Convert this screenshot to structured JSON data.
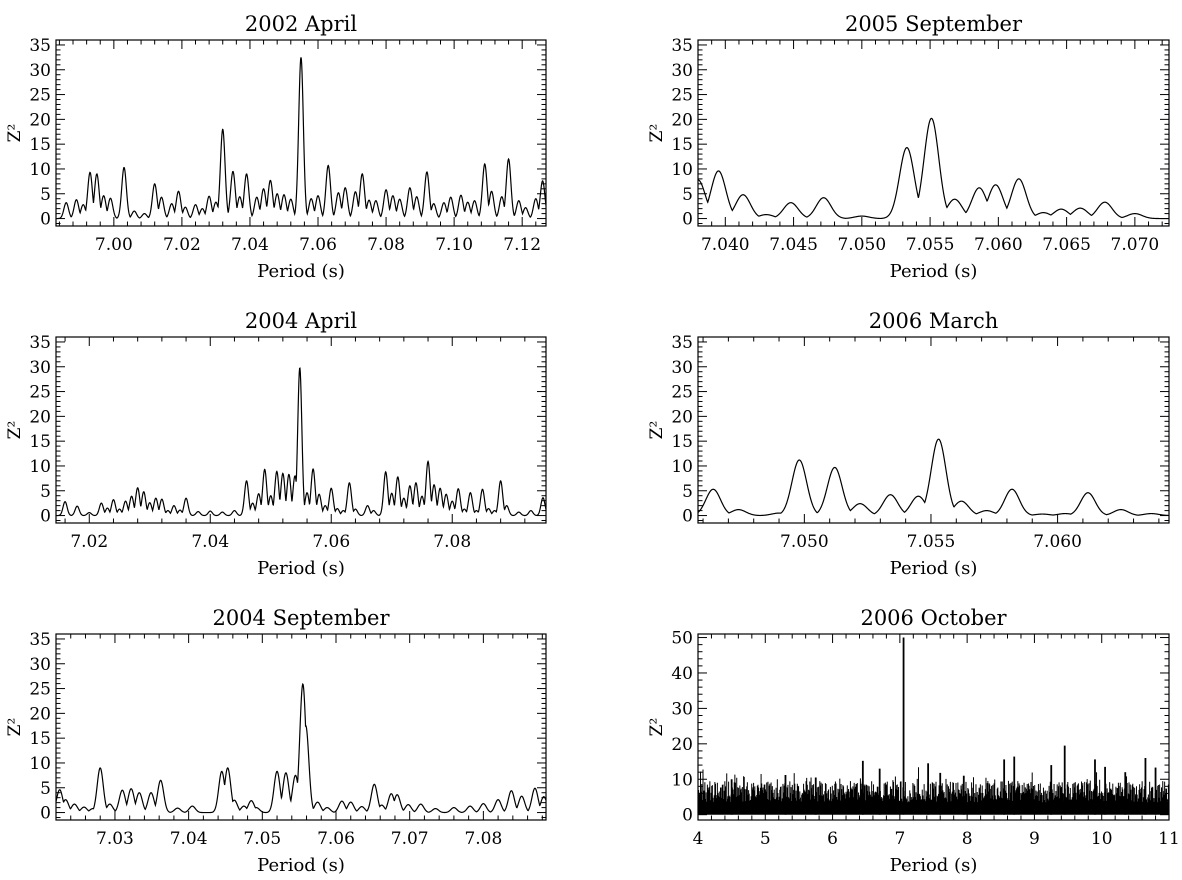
{
  "chart_data": [
    {
      "type": "line",
      "title": "2002 April",
      "xlabel": "Period (s)",
      "ylabel": "Z²",
      "xlim": [
        6.983,
        7.127
      ],
      "ylim": [
        -1.5,
        36
      ],
      "xticks": [
        "7.00",
        "7.02",
        "7.04",
        "7.06",
        "7.08",
        "7.10",
        "7.12"
      ],
      "yticks": [
        "0",
        "5",
        "10",
        "15",
        "20",
        "25",
        "30",
        "35"
      ],
      "peaks": [
        [
          6.986,
          3.2
        ],
        [
          6.989,
          3.8
        ],
        [
          6.991,
          2.8
        ],
        [
          6.993,
          9.3
        ],
        [
          6.995,
          9.0
        ],
        [
          6.997,
          4.6
        ],
        [
          6.999,
          4.1
        ],
        [
          7.003,
          10.3
        ],
        [
          7.006,
          1.5
        ],
        [
          7.009,
          1.0
        ],
        [
          7.012,
          7.0
        ],
        [
          7.014,
          4.3
        ],
        [
          7.017,
          3.0
        ],
        [
          7.019,
          5.5
        ],
        [
          7.021,
          2.3
        ],
        [
          7.024,
          2.8
        ],
        [
          7.026,
          2.0
        ],
        [
          7.028,
          4.5
        ],
        [
          7.03,
          3.3
        ],
        [
          7.032,
          18.0
        ],
        [
          7.035,
          9.5
        ],
        [
          7.037,
          4.4
        ],
        [
          7.039,
          9.0
        ],
        [
          7.042,
          4.3
        ],
        [
          7.044,
          6.0
        ],
        [
          7.046,
          7.7
        ],
        [
          7.048,
          5.0
        ],
        [
          7.05,
          4.8
        ],
        [
          7.052,
          3.9
        ],
        [
          7.055,
          32.5
        ],
        [
          7.058,
          4.0
        ],
        [
          7.06,
          4.6
        ],
        [
          7.063,
          10.7
        ],
        [
          7.066,
          5.2
        ],
        [
          7.068,
          6.2
        ],
        [
          7.071,
          5.4
        ],
        [
          7.073,
          9.0
        ],
        [
          7.075,
          3.7
        ],
        [
          7.077,
          3.6
        ],
        [
          7.08,
          5.8
        ],
        [
          7.082,
          4.6
        ],
        [
          7.084,
          3.9
        ],
        [
          7.087,
          6.2
        ],
        [
          7.089,
          4.4
        ],
        [
          7.092,
          9.4
        ],
        [
          7.094,
          3.0
        ],
        [
          7.097,
          3.2
        ],
        [
          7.099,
          4.3
        ],
        [
          7.102,
          4.7
        ],
        [
          7.104,
          3.3
        ],
        [
          7.106,
          3.6
        ],
        [
          7.109,
          11.0
        ],
        [
          7.111,
          5.5
        ],
        [
          7.114,
          4.4
        ],
        [
          7.116,
          12.0
        ],
        [
          7.119,
          3.6
        ],
        [
          7.121,
          2.2
        ],
        [
          7.124,
          4.0
        ],
        [
          7.126,
          7.6
        ]
      ]
    },
    {
      "type": "line",
      "title": "2005 September",
      "xlabel": "Period (s)",
      "ylabel": "Z²",
      "xlim": [
        7.038,
        7.0725
      ],
      "ylim": [
        -1.5,
        36
      ],
      "xticks": [
        "7.040",
        "7.045",
        "7.050",
        "7.055",
        "7.060",
        "7.065",
        "7.070"
      ],
      "yticks": [
        "0",
        "5",
        "10",
        "15",
        "20",
        "25",
        "30",
        "35"
      ],
      "peaks": [
        [
          7.038,
          7.8
        ],
        [
          7.0395,
          9.6
        ],
        [
          7.0413,
          4.8
        ],
        [
          7.043,
          0.8
        ],
        [
          7.0448,
          3.2
        ],
        [
          7.0472,
          4.2
        ],
        [
          7.05,
          0.5
        ],
        [
          7.0533,
          14.3
        ],
        [
          7.0551,
          20.2
        ],
        [
          7.0568,
          3.9
        ],
        [
          7.0586,
          6.2
        ],
        [
          7.0598,
          6.8
        ],
        [
          7.0615,
          8.0
        ],
        [
          7.0633,
          1.2
        ],
        [
          7.0646,
          1.9
        ],
        [
          7.066,
          2.1
        ],
        [
          7.0678,
          3.3
        ],
        [
          7.07,
          1.0
        ]
      ]
    },
    {
      "type": "line",
      "title": "2004 April",
      "xlabel": "Period (s)",
      "ylabel": "Z²",
      "xlim": [
        7.0145,
        7.0955
      ],
      "ylim": [
        -1.5,
        36
      ],
      "xticks": [
        "7.02",
        "7.04",
        "7.06",
        "7.08"
      ],
      "yticks": [
        "0",
        "5",
        "10",
        "15",
        "20",
        "25",
        "30",
        "35"
      ],
      "peaks": [
        [
          7.016,
          2.8
        ],
        [
          7.018,
          1.9
        ],
        [
          7.02,
          0.6
        ],
        [
          7.022,
          2.5
        ],
        [
          7.023,
          1.5
        ],
        [
          7.024,
          3.2
        ],
        [
          7.025,
          1.3
        ],
        [
          7.026,
          2.9
        ],
        [
          7.027,
          3.9
        ],
        [
          7.028,
          5.6
        ],
        [
          7.029,
          4.8
        ],
        [
          7.03,
          2.6
        ],
        [
          7.031,
          3.5
        ],
        [
          7.032,
          3.3
        ],
        [
          7.033,
          1.0
        ],
        [
          7.034,
          2.0
        ],
        [
          7.035,
          1.1
        ],
        [
          7.036,
          3.5
        ],
        [
          7.038,
          0.8
        ],
        [
          7.04,
          0.9
        ],
        [
          7.042,
          0.7
        ],
        [
          7.044,
          1.0
        ],
        [
          7.046,
          7.0
        ],
        [
          7.047,
          2.5
        ],
        [
          7.048,
          4.4
        ],
        [
          7.049,
          9.3
        ],
        [
          7.05,
          4.0
        ],
        [
          7.051,
          8.9
        ],
        [
          7.052,
          8.5
        ],
        [
          7.053,
          8.3
        ],
        [
          7.054,
          8.0
        ],
        [
          7.0548,
          29.8
        ],
        [
          7.056,
          4.6
        ],
        [
          7.057,
          9.4
        ],
        [
          7.058,
          4.3
        ],
        [
          7.059,
          2.0
        ],
        [
          7.06,
          5.5
        ],
        [
          7.061,
          1.4
        ],
        [
          7.062,
          1.0
        ],
        [
          7.063,
          6.6
        ],
        [
          7.064,
          1.3
        ],
        [
          7.066,
          2.0
        ],
        [
          7.067,
          1.0
        ],
        [
          7.069,
          8.8
        ],
        [
          7.07,
          4.5
        ],
        [
          7.071,
          7.8
        ],
        [
          7.072,
          3.5
        ],
        [
          7.073,
          6.0
        ],
        [
          7.074,
          6.6
        ],
        [
          7.075,
          3.9
        ],
        [
          7.076,
          10.9
        ],
        [
          7.077,
          6.2
        ],
        [
          7.078,
          5.5
        ],
        [
          7.079,
          4.3
        ],
        [
          7.08,
          2.9
        ],
        [
          7.081,
          5.4
        ],
        [
          7.082,
          1.3
        ],
        [
          7.083,
          4.6
        ],
        [
          7.084,
          1.0
        ],
        [
          7.085,
          5.3
        ],
        [
          7.086,
          1.4
        ],
        [
          7.087,
          1.0
        ],
        [
          7.088,
          7.0
        ],
        [
          7.089,
          2.0
        ],
        [
          7.091,
          0.7
        ],
        [
          7.093,
          1.0
        ],
        [
          7.095,
          3.6
        ]
      ]
    },
    {
      "type": "line",
      "title": "2006 March",
      "xlabel": "Period (s)",
      "ylabel": "Z²",
      "xlim": [
        7.0458,
        7.0644
      ],
      "ylim": [
        -1.5,
        36
      ],
      "xticks": [
        "7.050",
        "7.055",
        "7.060"
      ],
      "yticks": [
        "0",
        "5",
        "10",
        "15",
        "20",
        "25",
        "30",
        "35"
      ],
      "peaks": [
        [
          7.0464,
          5.3
        ],
        [
          7.0474,
          1.2
        ],
        [
          7.049,
          0.5
        ],
        [
          7.0498,
          11.2
        ],
        [
          7.0505,
          0.4
        ],
        [
          7.0512,
          9.7
        ],
        [
          7.0522,
          2.4
        ],
        [
          7.0534,
          4.2
        ],
        [
          7.0545,
          3.9
        ],
        [
          7.0553,
          15.4
        ],
        [
          7.0562,
          2.9
        ],
        [
          7.0572,
          1.0
        ],
        [
          7.0582,
          5.3
        ],
        [
          7.0594,
          0.3
        ],
        [
          7.0603,
          0.4
        ],
        [
          7.0612,
          4.6
        ],
        [
          7.0625,
          1.2
        ],
        [
          7.0637,
          0.4
        ]
      ]
    },
    {
      "type": "line",
      "title": "2004 September",
      "xlabel": "Period (s)",
      "ylabel": "Z²",
      "xlim": [
        7.022,
        7.0885
      ],
      "ylim": [
        -1.5,
        36
      ],
      "xticks": [
        "7.03",
        "7.04",
        "7.05",
        "7.06",
        "7.07",
        "7.08"
      ],
      "yticks": [
        "0",
        "5",
        "10",
        "15",
        "20",
        "25",
        "30",
        "35"
      ],
      "peaks": [
        [
          7.0225,
          4.6
        ],
        [
          7.0233,
          2.6
        ],
        [
          7.0245,
          1.7
        ],
        [
          7.0258,
          1.1
        ],
        [
          7.027,
          0.8
        ],
        [
          7.028,
          9.0
        ],
        [
          7.0293,
          1.7
        ],
        [
          7.031,
          4.5
        ],
        [
          7.0322,
          4.8
        ],
        [
          7.0333,
          4.0
        ],
        [
          7.0349,
          4.0
        ],
        [
          7.0362,
          6.5
        ],
        [
          7.0385,
          0.9
        ],
        [
          7.0405,
          1.3
        ],
        [
          7.0445,
          8.3
        ],
        [
          7.0453,
          9.0
        ],
        [
          7.0462,
          2.5
        ],
        [
          7.0475,
          1.3
        ],
        [
          7.0485,
          2.4
        ],
        [
          7.0492,
          1.0
        ],
        [
          7.052,
          8.3
        ],
        [
          7.0532,
          8.0
        ],
        [
          7.0545,
          7.5
        ],
        [
          7.0555,
          25.9
        ],
        [
          7.0559,
          17.5
        ],
        [
          7.0575,
          2.1
        ],
        [
          7.0588,
          1.0
        ],
        [
          7.0608,
          2.3
        ],
        [
          7.062,
          2.1
        ],
        [
          7.0635,
          1.2
        ],
        [
          7.0652,
          5.7
        ],
        [
          7.0662,
          1.5
        ],
        [
          7.0675,
          3.8
        ],
        [
          7.0683,
          3.6
        ],
        [
          7.0698,
          1.6
        ],
        [
          7.0715,
          1.7
        ],
        [
          7.0735,
          0.8
        ],
        [
          7.076,
          1.0
        ],
        [
          7.0782,
          1.3
        ],
        [
          7.08,
          1.8
        ],
        [
          7.082,
          2.6
        ],
        [
          7.0838,
          4.4
        ],
        [
          7.0852,
          3.3
        ],
        [
          7.087,
          4.9
        ],
        [
          7.0882,
          3.2
        ]
      ]
    },
    {
      "type": "line",
      "title": "2006 October",
      "xlabel": "Period (s)",
      "ylabel": "Z²",
      "xlim": [
        4,
        11
      ],
      "ylim": [
        -1.5,
        51
      ],
      "xticks": [
        "4",
        "5",
        "6",
        "7",
        "8",
        "9",
        "10",
        "11"
      ],
      "yticks": [
        "0",
        "10",
        "20",
        "30",
        "40",
        "50"
      ],
      "peaks": [
        [
          7.055,
          50.0
        ],
        [
          9.45,
          19.5
        ],
        [
          6.45,
          15.2
        ],
        [
          6.7,
          13.0
        ],
        [
          7.42,
          14.5
        ],
        [
          7.6,
          11.8
        ],
        [
          8.55,
          15.6
        ],
        [
          8.7,
          16.4
        ],
        [
          9.25,
          14.0
        ],
        [
          9.9,
          15.6
        ],
        [
          10.05,
          13.5
        ],
        [
          10.35,
          12.0
        ],
        [
          10.65,
          16.0
        ],
        [
          10.8,
          13.3
        ],
        [
          5.3,
          11.2
        ],
        [
          4.5,
          10.0
        ],
        [
          7.95,
          11.0
        ],
        [
          5.75,
          10.5
        ]
      ]
    }
  ]
}
